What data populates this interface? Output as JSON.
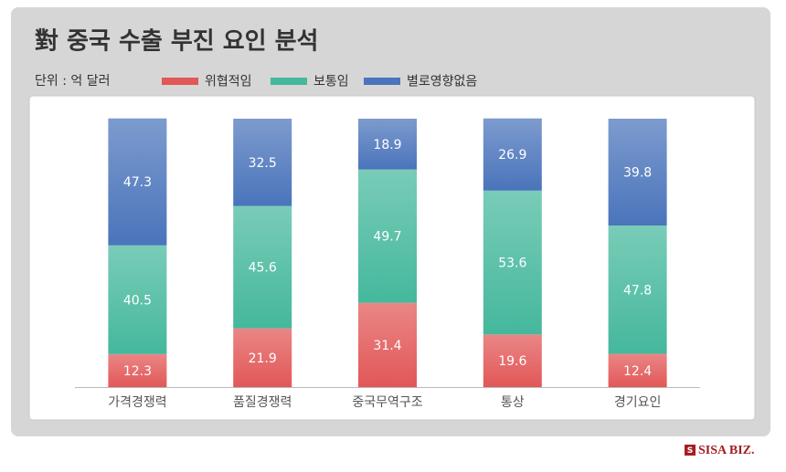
{
  "chart_data": {
    "type": "stacked-bar",
    "title": "對 중국 수출 부진 요인 분석",
    "unit": "단위 : 억 달러",
    "categories": [
      "가격경쟁력",
      "품질경쟁력",
      "중국무역구조",
      "통상",
      "경기요인"
    ],
    "series": [
      {
        "name": "위협적임",
        "color": "#e25757",
        "values": [
          12.3,
          21.9,
          31.4,
          19.6,
          12.4
        ]
      },
      {
        "name": "보통임",
        "color": "#45b89c",
        "values": [
          40.5,
          45.6,
          49.7,
          53.6,
          47.8
        ]
      },
      {
        "name": "별로영향없음",
        "color": "#4a74bb",
        "values": [
          47.3,
          32.5,
          18.9,
          26.9,
          39.8
        ]
      }
    ],
    "ylim": [
      0,
      100
    ]
  },
  "brand": "SISA BIZ."
}
